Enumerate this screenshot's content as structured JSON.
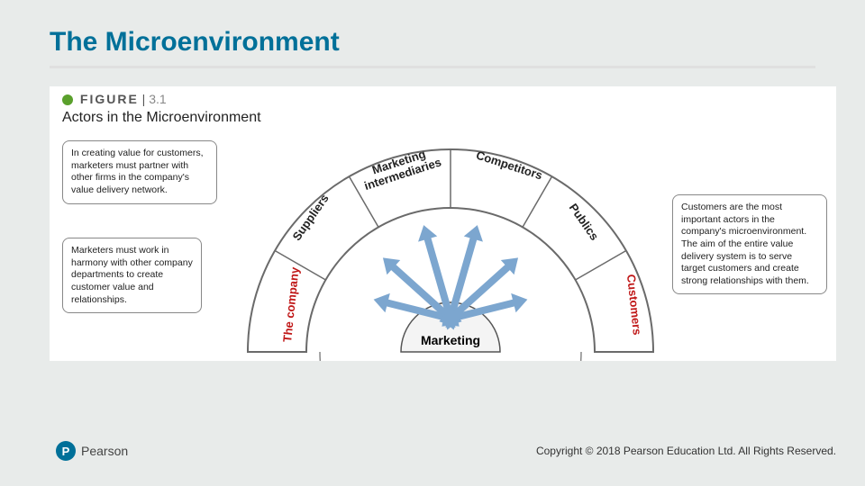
{
  "title": "The Microenvironment",
  "title_color": "#007099",
  "figure": {
    "label": "FIGURE",
    "number": "3.1",
    "title": "Actors in the Microenvironment",
    "bullet_color": "#5aa02c"
  },
  "callouts": {
    "top_left": "In creating value for customers, marketers must partner with other firms in the company's value delivery network.",
    "bottom_left": "Marketers must work in harmony with other company departments to create customer value and relationships.",
    "right": "Customers are the most important actors in the company's microenvironment. The aim of the entire value delivery system is to serve target customers and create strong relationships with them."
  },
  "diagram": {
    "center_label": "Marketing",
    "segments": [
      {
        "label": "The company",
        "color": "#c01818"
      },
      {
        "label": "Suppliers",
        "color": "#222222"
      },
      {
        "label": "Marketing intermediaries",
        "color": "#222222"
      },
      {
        "label": "Competitors",
        "color": "#222222"
      },
      {
        "label": "Publics",
        "color": "#222222"
      },
      {
        "label": "Customers",
        "color": "#c01818"
      }
    ],
    "arc_outer_stroke": "#6a6a6a",
    "arc_inner_stroke": "#888888",
    "arrow_fill": "#7ca6cf",
    "dome_fill": "#f4f4f4",
    "dome_stroke": "#555555"
  },
  "brand": {
    "mark": "P",
    "name": "Pearson",
    "mark_bg": "#007099"
  },
  "copyright": "Copyright © 2018 Pearson Education Ltd. All Rights Reserved."
}
